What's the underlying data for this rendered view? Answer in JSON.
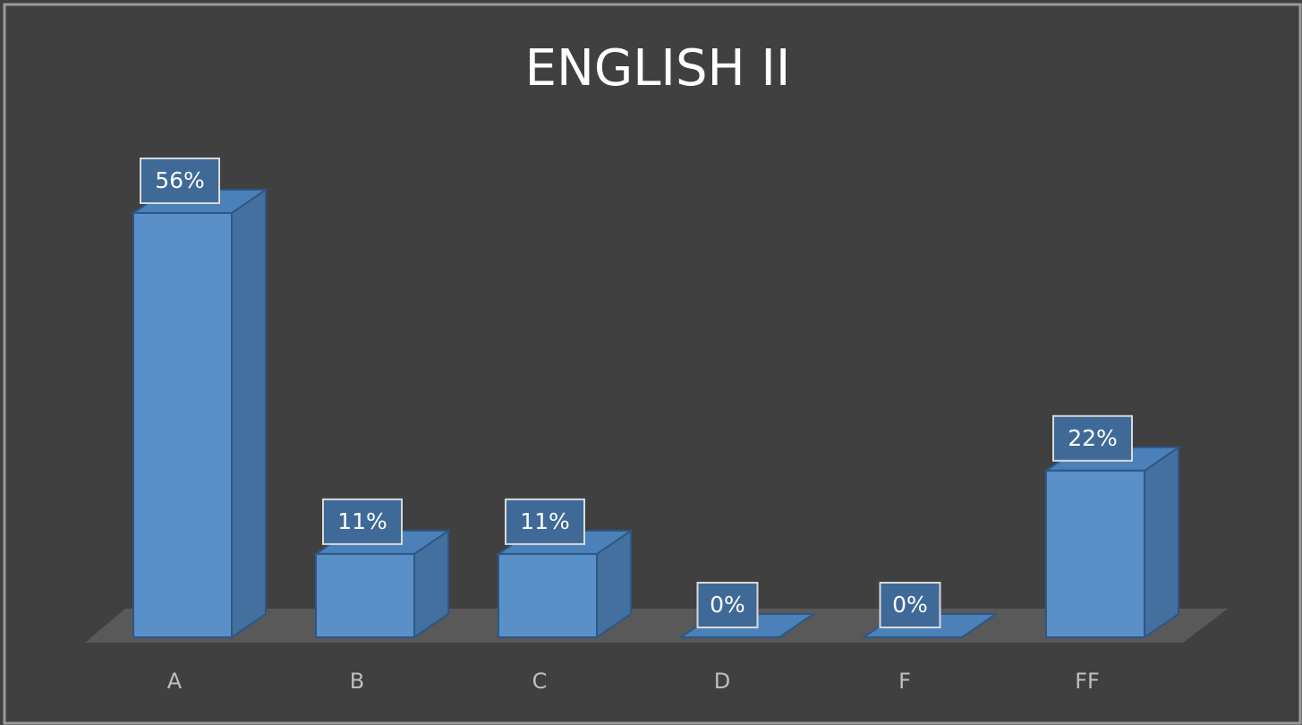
{
  "chart_data": {
    "type": "bar",
    "title": "ENGLISH II",
    "categories": [
      "A",
      "B",
      "C",
      "D",
      "F",
      "FF"
    ],
    "values": [
      56,
      11,
      11,
      0,
      0,
      22
    ],
    "value_labels": [
      "56%",
      "11%",
      "11%",
      "0%",
      "0%",
      "22%"
    ],
    "color": "#5b8fc7"
  }
}
